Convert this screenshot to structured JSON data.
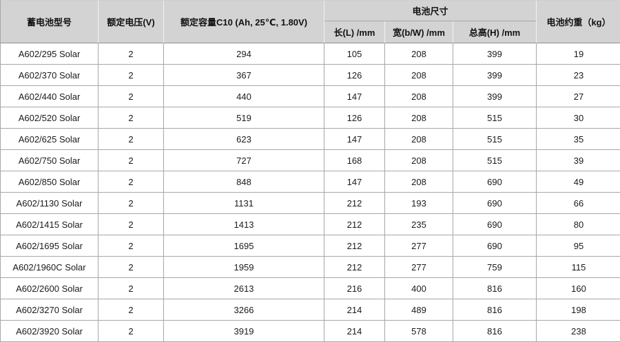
{
  "table": {
    "columns": [
      "model",
      "voltage",
      "capacity",
      "length",
      "width",
      "height",
      "weight"
    ],
    "headers": {
      "model": "蓄电池型号",
      "voltage": "额定电压(V)",
      "capacity": "额定容量C10 (Ah, 25℃, 1.80V)",
      "dimensions_group": "电池尺寸",
      "length": "长(L) /mm",
      "width": "宽(b/W) /mm",
      "height": "总高(H) /mm",
      "weight": "电池约重（kg）"
    },
    "rows": [
      [
        "A602/295 Solar",
        "2",
        "294",
        "105",
        "208",
        "399",
        "19"
      ],
      [
        "A602/370 Solar",
        "2",
        "367",
        "126",
        "208",
        "399",
        "23"
      ],
      [
        "A602/440 Solar",
        "2",
        "440",
        "147",
        "208",
        "399",
        "27"
      ],
      [
        "A602/520 Solar",
        "2",
        "519",
        "126",
        "208",
        "515",
        "30"
      ],
      [
        "A602/625 Solar",
        "2",
        "623",
        "147",
        "208",
        "515",
        "35"
      ],
      [
        "A602/750 Solar",
        "2",
        "727",
        "168",
        "208",
        "515",
        "39"
      ],
      [
        "A602/850 Solar",
        "2",
        "848",
        "147",
        "208",
        "690",
        "49"
      ],
      [
        "A602/1130 Solar",
        "2",
        "1131",
        "212",
        "193",
        "690",
        "66"
      ],
      [
        "A602/1415 Solar",
        "2",
        "1413",
        "212",
        "235",
        "690",
        "80"
      ],
      [
        "A602/1695 Solar",
        "2",
        "1695",
        "212",
        "277",
        "690",
        "95"
      ],
      [
        "A602/1960C Solar",
        "2",
        "1959",
        "212",
        "277",
        "759",
        "115"
      ],
      [
        "A602/2600 Solar",
        "2",
        "2613",
        "216",
        "400",
        "816",
        "160"
      ],
      [
        "A602/3270 Solar",
        "2",
        "3266",
        "214",
        "489",
        "816",
        "198"
      ],
      [
        "A602/3920 Solar",
        "2",
        "3919",
        "214",
        "578",
        "816",
        "238"
      ]
    ]
  },
  "colors": {
    "header_bg": "#d3d3d3",
    "header_separator": "#f2f2f2",
    "header_body_divider": "#8c8c8c",
    "grid_border": "#a6a6a6",
    "row_bg": "#ffffff",
    "text": "#1a1a1a"
  }
}
